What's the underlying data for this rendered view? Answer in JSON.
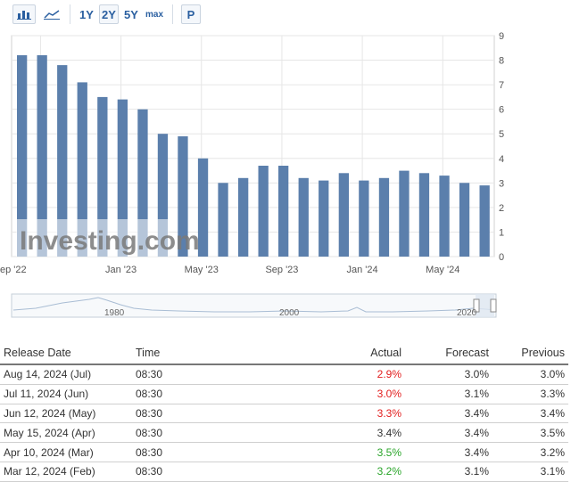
{
  "toolbar": {
    "bar_icon": "bar-chart-icon",
    "line_icon": "line-chart-icon",
    "ranges": [
      "1Y",
      "2Y",
      "5Y",
      "max"
    ],
    "selected_range": "2Y",
    "p_label": "P"
  },
  "chart_data": {
    "type": "bar",
    "categories": [
      "Aug 2022",
      "Sep 2022",
      "Oct 2022",
      "Nov 2022",
      "Dec 2022",
      "Jan 2023",
      "Feb 2023",
      "Mar 2023",
      "Apr 2023",
      "May 2023",
      "Jun 2023",
      "Jul 2023",
      "Aug 2023",
      "Sep 2023",
      "Oct 2023",
      "Nov 2023",
      "Dec 2023",
      "Jan 2024",
      "Feb 2024",
      "Mar 2024",
      "Apr 2024",
      "May 2024",
      "Jun 2024",
      "Jul 2024"
    ],
    "values": [
      8.2,
      8.2,
      7.8,
      7.1,
      6.5,
      6.4,
      6.0,
      5.0,
      4.9,
      4.0,
      3.0,
      3.2,
      3.7,
      3.7,
      3.2,
      3.1,
      3.4,
      3.1,
      3.2,
      3.5,
      3.4,
      3.3,
      3.0,
      2.9
    ],
    "x_tick_labels": [
      "ep '22",
      "Jan '23",
      "May '23",
      "Sep '23",
      "Jan '24",
      "May '24"
    ],
    "y_ticks": [
      0,
      1,
      2,
      3,
      4,
      5,
      6,
      7,
      8,
      9
    ],
    "ylim": [
      0,
      9
    ],
    "bar_color": "#5b7fac",
    "grid": true,
    "watermark": "Investing.com"
  },
  "navigator": {
    "labels": [
      "1980",
      "2000",
      "2020"
    ]
  },
  "table": {
    "headers": [
      "Release Date",
      "Time",
      "Actual",
      "Forecast",
      "Previous"
    ],
    "rows": [
      {
        "date": "Aug 14, 2024 (Jul)",
        "time": "08:30",
        "actual": "2.9%",
        "forecast": "3.0%",
        "previous": "3.0%",
        "status": "red"
      },
      {
        "date": "Jul 11, 2024 (Jun)",
        "time": "08:30",
        "actual": "3.0%",
        "forecast": "3.1%",
        "previous": "3.3%",
        "status": "red"
      },
      {
        "date": "Jun 12, 2024 (May)",
        "time": "08:30",
        "actual": "3.3%",
        "forecast": "3.4%",
        "previous": "3.4%",
        "status": "red"
      },
      {
        "date": "May 15, 2024 (Apr)",
        "time": "08:30",
        "actual": "3.4%",
        "forecast": "3.4%",
        "previous": "3.5%",
        "status": "neutral"
      },
      {
        "date": "Apr 10, 2024 (Mar)",
        "time": "08:30",
        "actual": "3.5%",
        "forecast": "3.4%",
        "previous": "3.2%",
        "status": "green"
      },
      {
        "date": "Mar 12, 2024 (Feb)",
        "time": "08:30",
        "actual": "3.2%",
        "forecast": "3.1%",
        "previous": "3.1%",
        "status": "green"
      }
    ]
  },
  "colors": {
    "red": "#e21d1d",
    "green": "#2aa52a",
    "accent": "#2a5fa0"
  }
}
